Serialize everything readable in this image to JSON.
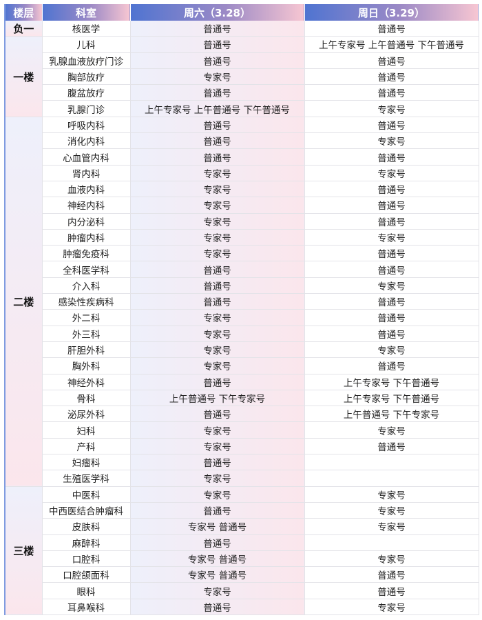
{
  "header": {
    "floor": "楼层",
    "dept": "科室",
    "sat": "周六（3.28）",
    "sun": "周日（3.29）"
  },
  "floors": [
    {
      "name": "负一",
      "rows": [
        {
          "dept": "核医学",
          "sat": "普通号",
          "sun": "普通号"
        }
      ]
    },
    {
      "name": "一楼",
      "rows": [
        {
          "dept": "儿科",
          "sat": "普通号",
          "sun": "上午专家号 上午普通号 下午普通号"
        },
        {
          "dept": "乳腺血液放疗门诊",
          "sat": "普通号",
          "sun": "普通号"
        },
        {
          "dept": "胸部放疗",
          "sat": "专家号",
          "sun": "普通号"
        },
        {
          "dept": "腹盆放疗",
          "sat": "普通号",
          "sun": "普通号"
        },
        {
          "dept": "乳腺门诊",
          "sat": "上午专家号 上午普通号 下午普通号",
          "sun": "专家号"
        }
      ]
    },
    {
      "name": "二楼",
      "rows": [
        {
          "dept": "呼吸内科",
          "sat": "普通号",
          "sun": "普通号"
        },
        {
          "dept": "消化内科",
          "sat": "普通号",
          "sun": "专家号"
        },
        {
          "dept": "心血管内科",
          "sat": "普通号",
          "sun": "普通号"
        },
        {
          "dept": "肾内科",
          "sat": "专家号",
          "sun": "专家号"
        },
        {
          "dept": "血液内科",
          "sat": "专家号",
          "sun": "普通号"
        },
        {
          "dept": "神经内科",
          "sat": "专家号",
          "sun": "普通号"
        },
        {
          "dept": "内分泌科",
          "sat": "专家号",
          "sun": "普通号"
        },
        {
          "dept": "肿瘤内科",
          "sat": "专家号",
          "sun": "专家号"
        },
        {
          "dept": "肿瘤免疫科",
          "sat": "专家号",
          "sun": "普通号"
        },
        {
          "dept": "全科医学科",
          "sat": "普通号",
          "sun": "普通号"
        },
        {
          "dept": "介入科",
          "sat": "普通号",
          "sun": "专家号"
        },
        {
          "dept": "感染性疾病科",
          "sat": "普通号",
          "sun": "普通号"
        },
        {
          "dept": "外二科",
          "sat": "专家号",
          "sun": "普通号"
        },
        {
          "dept": "外三科",
          "sat": "专家号",
          "sun": "普通号"
        },
        {
          "dept": "肝胆外科",
          "sat": "专家号",
          "sun": "专家号"
        },
        {
          "dept": "胸外科",
          "sat": "专家号",
          "sun": "普通号"
        },
        {
          "dept": "神经外科",
          "sat": "普通号",
          "sun": "上午专家号 下午普通号"
        },
        {
          "dept": "骨科",
          "sat": "上午普通号 下午专家号",
          "sun": "上午专家号 下午普通号"
        },
        {
          "dept": "泌尿外科",
          "sat": "普通号",
          "sun": "上午普通号 下午专家号"
        },
        {
          "dept": "妇科",
          "sat": "专家号",
          "sun": "专家号"
        },
        {
          "dept": "产科",
          "sat": "专家号",
          "sun": "普通号"
        },
        {
          "dept": "妇瘤科",
          "sat": "普通号",
          "sun": ""
        },
        {
          "dept": "生殖医学科",
          "sat": "专家号",
          "sun": ""
        }
      ]
    },
    {
      "name": "三楼",
      "rows": [
        {
          "dept": "中医科",
          "sat": "专家号",
          "sun": "专家号"
        },
        {
          "dept": "中西医结合肿瘤科",
          "sat": "普通号",
          "sun": "专家号"
        },
        {
          "dept": "皮肤科",
          "sat": "专家号 普通号",
          "sun": "专家号"
        },
        {
          "dept": "麻醉科",
          "sat": "普通号",
          "sun": ""
        },
        {
          "dept": "口腔科",
          "sat": "专家号 普通号",
          "sun": "专家号"
        },
        {
          "dept": "口腔颌面科",
          "sat": "专家号 普通号",
          "sun": "普通号"
        },
        {
          "dept": "眼科",
          "sat": "专家号",
          "sun": "普通号"
        },
        {
          "dept": "耳鼻喉科",
          "sat": "普通号",
          "sun": "专家号"
        }
      ]
    }
  ]
}
